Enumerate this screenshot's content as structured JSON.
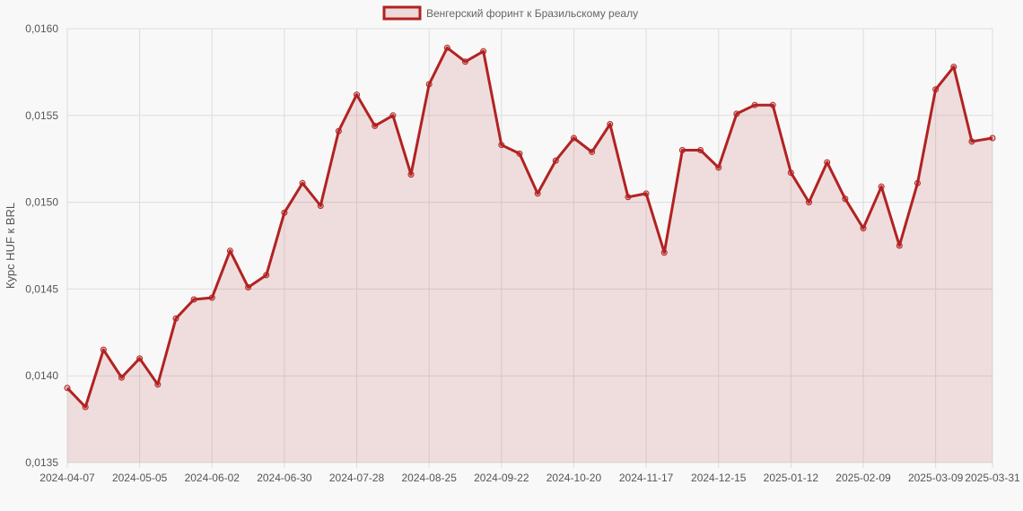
{
  "chart_data": {
    "type": "line",
    "title": "",
    "xlabel": "",
    "ylabel": "Курс HUF к BRL",
    "ylim": [
      0.0135,
      0.016
    ],
    "y_ticks": [
      "0,0135",
      "0,0140",
      "0,0145",
      "0,0150",
      "0,0155",
      "0,0160"
    ],
    "x_ticks": [
      "2024-04-07",
      "2024-05-05",
      "2024-06-02",
      "2024-06-30",
      "2024-07-28",
      "2024-08-25",
      "2024-09-22",
      "2024-10-20",
      "2024-11-17",
      "2024-12-15",
      "2025-01-12",
      "2025-02-09",
      "2025-03-09",
      "2025-03-31"
    ],
    "grid": true,
    "legend": {
      "position": "top-center",
      "entries": [
        "Венгерский форинт к Бразильскому реалу"
      ]
    },
    "colors": {
      "line": "#b22222",
      "fill": "rgba(178, 34, 34, 0.12)",
      "grid": "#dddddd"
    },
    "series": [
      {
        "name": "Венгерский форинт к Бразильскому реалу",
        "x": [
          "2024-04-07",
          "2024-04-14",
          "2024-04-21",
          "2024-04-28",
          "2024-05-05",
          "2024-05-12",
          "2024-05-19",
          "2024-05-26",
          "2024-06-02",
          "2024-06-09",
          "2024-06-16",
          "2024-06-23",
          "2024-06-30",
          "2024-07-07",
          "2024-07-14",
          "2024-07-21",
          "2024-07-28",
          "2024-08-04",
          "2024-08-11",
          "2024-08-18",
          "2024-08-25",
          "2024-09-01",
          "2024-09-08",
          "2024-09-15",
          "2024-09-22",
          "2024-09-29",
          "2024-10-06",
          "2024-10-13",
          "2024-10-20",
          "2024-10-27",
          "2024-11-03",
          "2024-11-10",
          "2024-11-17",
          "2024-11-24",
          "2024-12-01",
          "2024-12-08",
          "2024-12-15",
          "2024-12-22",
          "2024-12-29",
          "2025-01-05",
          "2025-01-12",
          "2025-01-19",
          "2025-01-26",
          "2025-02-02",
          "2025-02-09",
          "2025-02-16",
          "2025-02-23",
          "2025-03-02",
          "2025-03-09",
          "2025-03-16",
          "2025-03-23",
          "2025-03-31"
        ],
        "values": [
          0.01393,
          0.01382,
          0.01415,
          0.01399,
          0.0141,
          0.01395,
          0.01433,
          0.01444,
          0.01445,
          0.01472,
          0.01451,
          0.01458,
          0.01494,
          0.01511,
          0.01498,
          0.01541,
          0.01562,
          0.01544,
          0.0155,
          0.01516,
          0.01568,
          0.01589,
          0.01581,
          0.01587,
          0.01533,
          0.01528,
          0.01505,
          0.01524,
          0.01537,
          0.01529,
          0.01545,
          0.01503,
          0.01505,
          0.01471,
          0.0153,
          0.0153,
          0.0152,
          0.01551,
          0.01556,
          0.01556,
          0.01517,
          0.015,
          0.01523,
          0.01502,
          0.01485,
          0.01509,
          0.01475,
          0.01511,
          0.01565,
          0.01578,
          0.01535,
          0.01537
        ]
      }
    ]
  }
}
